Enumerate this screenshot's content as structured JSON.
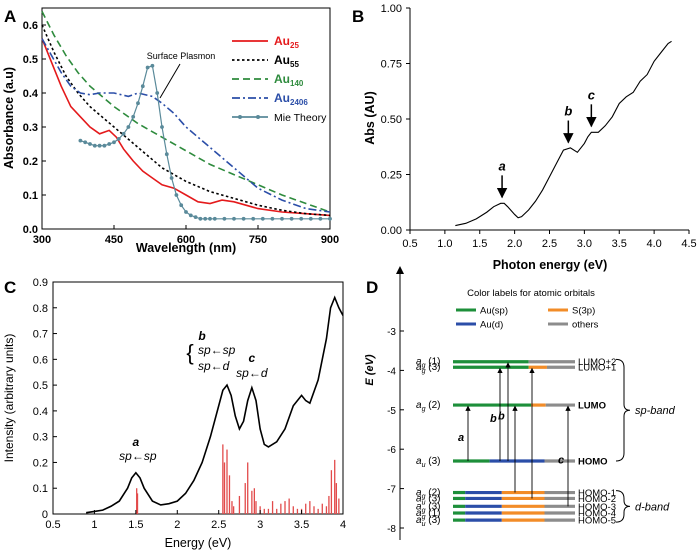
{
  "panels": {
    "A": "A",
    "B": "B",
    "C": "C",
    "D": "D"
  },
  "chart_data": [
    {
      "type": "line",
      "panel": "A",
      "xlabel": "Wavelength (nm)",
      "ylabel": "Absorbance (a.u)",
      "xlim": [
        300,
        900
      ],
      "ylim": [
        0,
        0.65
      ],
      "xticks": [
        300,
        450,
        600,
        750,
        900
      ],
      "yticks": [
        0.0,
        0.1,
        0.2,
        0.3,
        0.4,
        0.5,
        0.6
      ],
      "annotation": "Surface Plasmon",
      "legend": [
        {
          "name": "Au",
          "sub": "25",
          "color": "#e41a1c",
          "dash": "solid"
        },
        {
          "name": "Au",
          "sub": "55",
          "color": "#000000",
          "dash": "dotted"
        },
        {
          "name": "Au",
          "sub": "140",
          "color": "#2e8b3d",
          "dash": "dashed"
        },
        {
          "name": "Au",
          "sub": "2406",
          "color": "#2b4ea8",
          "dash": "dashdot"
        },
        {
          "name": "Mie Theory",
          "sub": "",
          "color": "#5a8a9a",
          "dash": "marker"
        }
      ],
      "series": [
        {
          "name": "Au25",
          "color": "#e41a1c",
          "dash": "solid",
          "x": [
            300,
            320,
            340,
            360,
            380,
            400,
            420,
            440,
            455,
            470,
            490,
            510,
            530,
            550,
            575,
            600,
            625,
            650,
            675,
            700,
            750,
            800,
            850,
            900
          ],
          "y": [
            0.56,
            0.49,
            0.42,
            0.36,
            0.33,
            0.3,
            0.28,
            0.29,
            0.27,
            0.235,
            0.2,
            0.17,
            0.15,
            0.13,
            0.12,
            0.1,
            0.08,
            0.075,
            0.085,
            0.08,
            0.06,
            0.05,
            0.045,
            0.04
          ]
        },
        {
          "name": "Au55",
          "color": "#000000",
          "dash": "dotted",
          "x": [
            300,
            325,
            350,
            375,
            400,
            425,
            450,
            475,
            500,
            525,
            550,
            575,
            600,
            650,
            700,
            750,
            800,
            850,
            900
          ],
          "y": [
            0.6,
            0.52,
            0.45,
            0.4,
            0.36,
            0.33,
            0.3,
            0.27,
            0.24,
            0.21,
            0.18,
            0.16,
            0.14,
            0.11,
            0.09,
            0.07,
            0.055,
            0.045,
            0.04
          ]
        },
        {
          "name": "Au140",
          "color": "#2e8b3d",
          "dash": "dashed",
          "x": [
            300,
            325,
            350,
            375,
            400,
            450,
            500,
            550,
            600,
            650,
            700,
            750,
            800,
            850,
            900
          ],
          "y": [
            0.64,
            0.57,
            0.51,
            0.46,
            0.42,
            0.36,
            0.31,
            0.27,
            0.23,
            0.19,
            0.16,
            0.13,
            0.1,
            0.075,
            0.05
          ]
        },
        {
          "name": "Au2406",
          "color": "#2b4ea8",
          "dash": "dashdot",
          "x": [
            300,
            320,
            340,
            360,
            380,
            400,
            420,
            450,
            480,
            500,
            530,
            550,
            575,
            600,
            625,
            650,
            675,
            700,
            750,
            800,
            850,
            900
          ],
          "y": [
            0.56,
            0.51,
            0.46,
            0.42,
            0.4,
            0.395,
            0.4,
            0.4,
            0.39,
            0.4,
            0.39,
            0.37,
            0.34,
            0.3,
            0.27,
            0.24,
            0.21,
            0.18,
            0.12,
            0.085,
            0.06,
            0.05
          ]
        },
        {
          "name": "Mie Theory",
          "color": "#5a8a9a",
          "dash": "marker",
          "x": [
            380,
            390,
            400,
            410,
            420,
            430,
            440,
            450,
            460,
            470,
            480,
            490,
            500,
            510,
            520,
            530,
            540,
            550,
            560,
            570,
            580,
            590,
            600,
            610,
            620,
            630,
            640,
            650,
            660,
            680,
            700,
            720,
            740,
            760,
            780,
            800,
            820,
            840,
            860,
            880,
            900
          ],
          "y": [
            0.26,
            0.255,
            0.25,
            0.245,
            0.245,
            0.245,
            0.25,
            0.255,
            0.265,
            0.28,
            0.3,
            0.33,
            0.37,
            0.42,
            0.475,
            0.48,
            0.4,
            0.3,
            0.22,
            0.15,
            0.1,
            0.07,
            0.05,
            0.04,
            0.035,
            0.03,
            0.03,
            0.03,
            0.03,
            0.03,
            0.03,
            0.03,
            0.03,
            0.03,
            0.03,
            0.03,
            0.03,
            0.03,
            0.03,
            0.03,
            0.03
          ]
        }
      ]
    },
    {
      "type": "line",
      "panel": "B",
      "xlabel": "Photon energy (eV)",
      "ylabel": "Abs (AU)",
      "xlim": [
        0.5,
        4.5
      ],
      "ylim": [
        0,
        1.0
      ],
      "xticks": [
        0.5,
        1.0,
        1.5,
        2.0,
        2.5,
        3.0,
        3.5,
        4.0,
        4.5
      ],
      "yticks": [
        0.0,
        0.25,
        0.5,
        0.75,
        1.0
      ],
      "peaks": [
        {
          "label": "a",
          "x": 1.82
        },
        {
          "label": "b",
          "x": 2.77
        },
        {
          "label": "c",
          "x": 3.1
        }
      ],
      "series": [
        {
          "name": "Au25 absorbance",
          "color": "#000000",
          "x": [
            1.15,
            1.3,
            1.45,
            1.6,
            1.7,
            1.8,
            1.85,
            1.9,
            2.0,
            2.05,
            2.1,
            2.2,
            2.3,
            2.4,
            2.5,
            2.6,
            2.7,
            2.8,
            2.9,
            3.0,
            3.05,
            3.1,
            3.2,
            3.3,
            3.4,
            3.5,
            3.6,
            3.7,
            3.8,
            3.9,
            4.0,
            4.1,
            4.2,
            4.25
          ],
          "y": [
            0.02,
            0.03,
            0.05,
            0.08,
            0.105,
            0.12,
            0.12,
            0.105,
            0.07,
            0.055,
            0.06,
            0.09,
            0.13,
            0.18,
            0.24,
            0.3,
            0.36,
            0.37,
            0.35,
            0.39,
            0.42,
            0.44,
            0.44,
            0.47,
            0.51,
            0.57,
            0.6,
            0.62,
            0.67,
            0.7,
            0.76,
            0.8,
            0.84,
            0.85
          ]
        }
      ]
    },
    {
      "type": "line",
      "panel": "C",
      "xlabel": "Energy (eV)",
      "ylabel": "Intensity (arbitrary units)",
      "xlim": [
        0.5,
        4.0
      ],
      "ylim": [
        0,
        0.9
      ],
      "xticks": [
        0.5,
        1.0,
        1.5,
        2.0,
        2.5,
        3.0,
        3.5,
        4.0
      ],
      "yticks": [
        0.0,
        0.1,
        0.2,
        0.3,
        0.4,
        0.5,
        0.6,
        0.7,
        0.8,
        0.9
      ],
      "annotations": [
        {
          "label": "a",
          "text": "sp←sp",
          "x": 1.5
        },
        {
          "label": "b",
          "text1": "sp←sp",
          "text2": "sp←d",
          "x": 2.6
        },
        {
          "label": "c",
          "text": "sp←d",
          "x": 2.9
        }
      ],
      "series": [
        {
          "name": "Calculated spectrum",
          "color": "#000000",
          "x": [
            0.9,
            1.0,
            1.1,
            1.2,
            1.3,
            1.4,
            1.45,
            1.5,
            1.55,
            1.6,
            1.7,
            1.8,
            1.9,
            2.0,
            2.1,
            2.2,
            2.3,
            2.4,
            2.5,
            2.55,
            2.6,
            2.65,
            2.7,
            2.75,
            2.8,
            2.85,
            2.9,
            2.95,
            3.0,
            3.05,
            3.1,
            3.2,
            3.3,
            3.4,
            3.5,
            3.55,
            3.6,
            3.7,
            3.8,
            3.85,
            3.9,
            3.95,
            4.0
          ],
          "y": [
            0.005,
            0.01,
            0.015,
            0.03,
            0.05,
            0.1,
            0.14,
            0.16,
            0.14,
            0.1,
            0.05,
            0.035,
            0.04,
            0.05,
            0.08,
            0.13,
            0.2,
            0.3,
            0.42,
            0.48,
            0.5,
            0.46,
            0.38,
            0.33,
            0.36,
            0.44,
            0.49,
            0.44,
            0.33,
            0.27,
            0.26,
            0.28,
            0.33,
            0.42,
            0.46,
            0.44,
            0.43,
            0.52,
            0.68,
            0.8,
            0.84,
            0.8,
            0.77
          ]
        }
      ],
      "sticks": {
        "color": "#e24a4a",
        "x": [
          1.51,
          1.52,
          2.55,
          2.57,
          2.6,
          2.63,
          2.66,
          2.68,
          2.75,
          2.82,
          2.85,
          2.9,
          2.93,
          2.95,
          3.0,
          3.05,
          3.1,
          3.15,
          3.2,
          3.25,
          3.3,
          3.35,
          3.4,
          3.45,
          3.5,
          3.55,
          3.6,
          3.65,
          3.7,
          3.75,
          3.8,
          3.83,
          3.86,
          3.9,
          3.92,
          3.95
        ],
        "y": [
          0.1,
          0.08,
          0.27,
          0.2,
          0.25,
          0.15,
          0.05,
          0.03,
          0.07,
          0.12,
          0.2,
          0.09,
          0.1,
          0.05,
          0.03,
          0.02,
          0.02,
          0.05,
          0.02,
          0.04,
          0.05,
          0.06,
          0.03,
          0.02,
          0.02,
          0.04,
          0.05,
          0.03,
          0.02,
          0.04,
          0.03,
          0.07,
          0.17,
          0.21,
          0.12,
          0.06
        ]
      }
    },
    {
      "type": "diagram",
      "panel": "D",
      "ylabel": "E (eV)",
      "ylim": [
        -8.2,
        -2.4
      ],
      "yticks": [
        -3,
        -4,
        -5,
        -6,
        -7,
        -8
      ],
      "legend_title": "Color labels for atomic orbitals",
      "legend": [
        {
          "label": "Au(sp)",
          "color": "#1d8f3a"
        },
        {
          "label": "S(3p)",
          "color": "#f28c28"
        },
        {
          "label": "Au(d)",
          "color": "#2b4ea8"
        },
        {
          "label": "others",
          "color": "#8c8c8c"
        }
      ],
      "levels": [
        {
          "sym": "a",
          "sub": "g",
          "deg": "(1)",
          "E": -3.78,
          "right": "LUMO+2",
          "bold": false,
          "comp": [
            0.62,
            0.0,
            0.0,
            0.38
          ]
        },
        {
          "sym": "a",
          "sub": "g",
          "deg": "(3)",
          "E": -3.92,
          "right": "LUMO+1",
          "bold": false,
          "comp": [
            0.62,
            0.15,
            0.0,
            0.23
          ]
        },
        {
          "sym": "a",
          "sub": "g",
          "deg": "(2)",
          "E": -4.88,
          "right": "LUMO",
          "bold": true,
          "comp": [
            0.64,
            0.12,
            0.0,
            0.24
          ]
        },
        {
          "sym": "a",
          "sub": "u",
          "deg": "(3)",
          "E": -6.3,
          "right": "HOMO",
          "bold": true,
          "comp": [
            0.3,
            0.0,
            0.45,
            0.25
          ]
        },
        {
          "sym": "a",
          "sub": "g",
          "deg": "(2)",
          "E": -7.1,
          "right": "HOMO-1",
          "bold": false,
          "comp": [
            0.1,
            0.35,
            0.3,
            0.25
          ]
        },
        {
          "sym": "a",
          "sub": "u",
          "deg": "(3)",
          "E": -7.25,
          "right": "HOMO-2",
          "bold": false,
          "comp": [
            0.1,
            0.35,
            0.3,
            0.25
          ]
        },
        {
          "sym": "a",
          "sub": "g",
          "deg": "(3)",
          "E": -7.45,
          "right": "HOMO-3",
          "bold": false,
          "comp": [
            0.1,
            0.35,
            0.3,
            0.25
          ]
        },
        {
          "sym": "a",
          "sub": "g",
          "deg": "(1)",
          "E": -7.62,
          "right": "HOMO-4",
          "bold": false,
          "comp": [
            0.1,
            0.35,
            0.3,
            0.25
          ]
        },
        {
          "sym": "a",
          "sub": "u",
          "deg": "(3)",
          "E": -7.8,
          "right": "HOMO-5",
          "bold": false,
          "comp": [
            0.1,
            0.35,
            0.3,
            0.25
          ]
        }
      ],
      "transitions": [
        {
          "label": "a",
          "from": -6.3,
          "to": -4.88
        },
        {
          "label": "b",
          "from": -6.3,
          "to": -3.92
        },
        {
          "label": "b",
          "from": -6.3,
          "to": -3.78
        },
        {
          "label": "",
          "from": -7.1,
          "to": -4.88
        },
        {
          "label": "c",
          "from": -7.45,
          "to": -4.88
        },
        {
          "label": "",
          "from": -7.25,
          "to": -3.92
        }
      ],
      "bands": [
        {
          "label": "sp-band",
          "from": -3.72,
          "to": -6.3
        },
        {
          "label": "d-band",
          "from": -7.05,
          "to": -7.85
        }
      ]
    }
  ]
}
